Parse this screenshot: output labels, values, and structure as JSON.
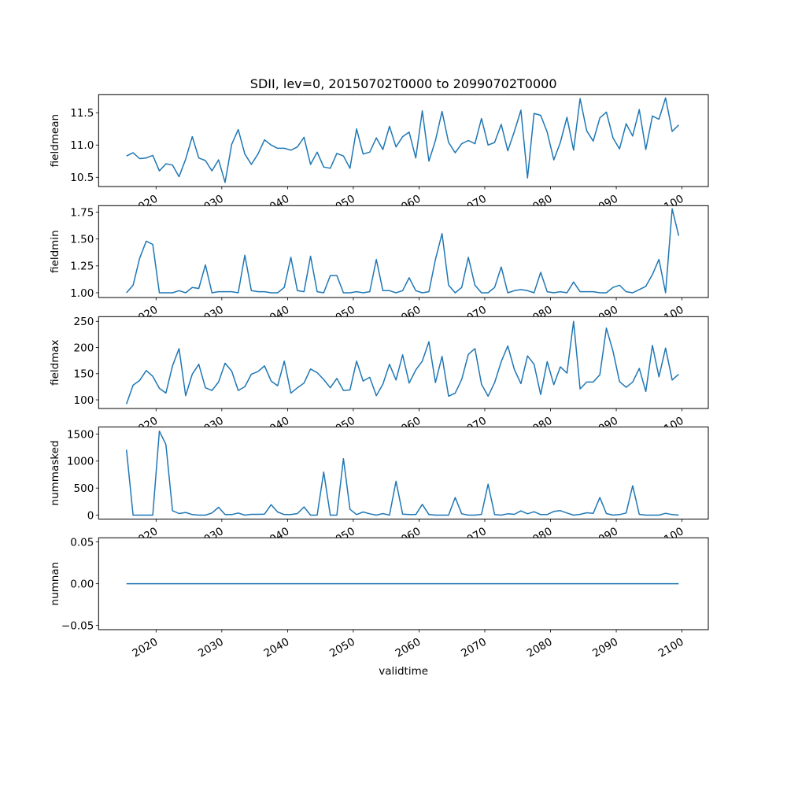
{
  "chart_data": [
    {
      "type": "line",
      "title": "SDII, lev=0, 20150702T0000 to 20990702T0000",
      "ylabel": "fieldmean",
      "xlabel": "",
      "ylim": [
        10.357,
        11.78
      ],
      "yticks": [
        10.5,
        11.0,
        11.5
      ],
      "ytick_labels": [
        "10.5",
        "11.0",
        "11.5"
      ],
      "color": "#1f77b4",
      "values": [
        10.83,
        10.88,
        10.79,
        10.8,
        10.84,
        10.6,
        10.71,
        10.69,
        10.51,
        10.78,
        11.13,
        10.8,
        10.76,
        10.6,
        10.77,
        10.42,
        11.01,
        11.24,
        10.86,
        10.7,
        10.86,
        11.08,
        11.0,
        10.95,
        10.95,
        10.92,
        10.97,
        11.12,
        10.7,
        10.89,
        10.66,
        10.64,
        10.87,
        10.83,
        10.64,
        11.25,
        10.86,
        10.89,
        11.11,
        10.93,
        11.29,
        10.97,
        11.13,
        11.2,
        10.8,
        11.53,
        10.75,
        11.07,
        11.52,
        11.04,
        10.88,
        11.02,
        11.07,
        11.02,
        11.41,
        11.0,
        11.04,
        11.32,
        10.91,
        11.21,
        11.54,
        10.49,
        11.49,
        11.46,
        11.2,
        10.77,
        11.04,
        11.43,
        10.92,
        11.72,
        11.22,
        11.06,
        11.42,
        11.51,
        11.11,
        10.94,
        11.33,
        11.14,
        11.55,
        10.93,
        11.45,
        11.4,
        11.73,
        11.21,
        11.31
      ]
    },
    {
      "type": "line",
      "ylabel": "fieldmin",
      "xlabel": "",
      "ylim": [
        0.956,
        1.81
      ],
      "yticks": [
        1.0,
        1.25,
        1.5,
        1.75
      ],
      "ytick_labels": [
        "1.00",
        "1.25",
        "1.50",
        "1.75"
      ],
      "color": "#1f77b4",
      "values": [
        1.0,
        1.07,
        1.32,
        1.48,
        1.45,
        1.0,
        1.0,
        1.0,
        1.02,
        1.0,
        1.05,
        1.04,
        1.26,
        1.0,
        1.01,
        1.01,
        1.01,
        1.0,
        1.35,
        1.02,
        1.01,
        1.01,
        1.0,
        1.0,
        1.05,
        1.33,
        1.02,
        1.01,
        1.34,
        1.01,
        1.0,
        1.16,
        1.16,
        1.0,
        1.0,
        1.01,
        1.0,
        1.01,
        1.31,
        1.02,
        1.02,
        1.0,
        1.02,
        1.14,
        1.02,
        1.0,
        1.01,
        1.31,
        1.55,
        1.07,
        1.0,
        1.05,
        1.33,
        1.07,
        1.0,
        1.0,
        1.05,
        1.24,
        1.0,
        1.02,
        1.03,
        1.02,
        1.0,
        1.19,
        1.01,
        1.0,
        1.01,
        1.0,
        1.1,
        1.01,
        1.01,
        1.01,
        1.0,
        1.0,
        1.05,
        1.07,
        1.01,
        1.0,
        1.03,
        1.06,
        1.17,
        1.31,
        1.0,
        1.78,
        1.53
      ]
    },
    {
      "type": "line",
      "ylabel": "fieldmax",
      "xlabel": "",
      "ylim": [
        83.5,
        259
      ],
      "yticks": [
        100,
        150,
        200,
        250
      ],
      "ytick_labels": [
        "100",
        "150",
        "200",
        "250"
      ],
      "color": "#1f77b4",
      "values": [
        92,
        128,
        137,
        156,
        145,
        122,
        113,
        165,
        198,
        108,
        149,
        168,
        123,
        118,
        134,
        170,
        155,
        118,
        125,
        149,
        154,
        165,
        136,
        127,
        174,
        113,
        123,
        132,
        159,
        152,
        139,
        123,
        141,
        118,
        119,
        174,
        136,
        143,
        108,
        130,
        168,
        138,
        186,
        132,
        157,
        174,
        211,
        133,
        183,
        107,
        113,
        139,
        187,
        198,
        130,
        107,
        133,
        173,
        203,
        158,
        131,
        184,
        168,
        110,
        173,
        129,
        163,
        151,
        250,
        121,
        134,
        134,
        148,
        237,
        193,
        135,
        124,
        134,
        160,
        116,
        204,
        144,
        199,
        138,
        149
      ]
    },
    {
      "type": "line",
      "ylabel": "nummasked",
      "xlabel": "",
      "ylim": [
        -73,
        1631
      ],
      "yticks": [
        0,
        500,
        1000,
        1500
      ],
      "ytick_labels": [
        "0",
        "500",
        "1000",
        "1500"
      ],
      "color": "#1f77b4",
      "values": [
        1210,
        0,
        0,
        0,
        0,
        1555,
        1307,
        83,
        29,
        49,
        10,
        0,
        0,
        39,
        146,
        10,
        10,
        39,
        0,
        15,
        15,
        19,
        194,
        58,
        10,
        10,
        29,
        151,
        0,
        0,
        797,
        0,
        0,
        1045,
        107,
        10,
        58,
        24,
        0,
        29,
        0,
        627,
        19,
        10,
        10,
        199,
        10,
        0,
        0,
        0,
        326,
        24,
        0,
        0,
        15,
        573,
        10,
        0,
        24,
        15,
        78,
        24,
        63,
        10,
        10,
        68,
        83,
        39,
        0,
        15,
        44,
        34,
        326,
        29,
        0,
        10,
        39,
        544,
        15,
        0,
        0,
        0,
        34,
        10,
        0
      ]
    },
    {
      "type": "line",
      "ylabel": "numnan",
      "xlabel": "validtime",
      "ylim": [
        -0.055,
        0.055
      ],
      "yticks": [
        -0.05,
        0.0,
        0.05
      ],
      "ytick_labels": [
        "−0.05",
        "0.00",
        "0.05"
      ],
      "color": "#1f77b4",
      "values": [
        0,
        0,
        0,
        0,
        0,
        0,
        0,
        0,
        0,
        0,
        0,
        0,
        0,
        0,
        0,
        0,
        0,
        0,
        0,
        0,
        0,
        0,
        0,
        0,
        0,
        0,
        0,
        0,
        0,
        0,
        0,
        0,
        0,
        0,
        0,
        0,
        0,
        0,
        0,
        0,
        0,
        0,
        0,
        0,
        0,
        0,
        0,
        0,
        0,
        0,
        0,
        0,
        0,
        0,
        0,
        0,
        0,
        0,
        0,
        0,
        0,
        0,
        0,
        0,
        0,
        0,
        0,
        0,
        0,
        0,
        0,
        0,
        0,
        0,
        0,
        0,
        0,
        0,
        0,
        0,
        0,
        0,
        0,
        0,
        0
      ]
    }
  ],
  "x_axis": {
    "x_start_year": 2015,
    "x_step_years": 1,
    "xlim": [
      2011.26,
      2104.0
    ],
    "xticks": [
      2020,
      2030,
      2040,
      2050,
      2060,
      2070,
      2080,
      2090,
      2100
    ],
    "xtick_labels": [
      "2020",
      "2030",
      "2040",
      "2050",
      "2060",
      "2070",
      "2080",
      "2090",
      "2100"
    ]
  }
}
